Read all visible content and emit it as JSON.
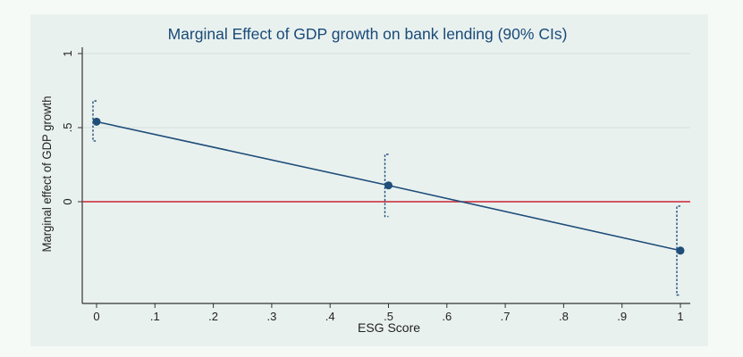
{
  "chart_data": {
    "type": "line",
    "title": "Marginal Effect of GDP growth on bank lending (90% CIs)",
    "xlabel": "ESG Score",
    "ylabel": "Marginal effect of GDP growth",
    "xlim": [
      0,
      1
    ],
    "ylim": [
      -0.67,
      1
    ],
    "x_ticks": [
      {
        "value": 0,
        "label": "0"
      },
      {
        "value": 0.1,
        "label": ".1"
      },
      {
        "value": 0.2,
        "label": ".2"
      },
      {
        "value": 0.3,
        "label": ".3"
      },
      {
        "value": 0.4,
        "label": ".4"
      },
      {
        "value": 0.5,
        "label": ".5"
      },
      {
        "value": 0.6,
        "label": ".6"
      },
      {
        "value": 0.7,
        "label": ".7"
      },
      {
        "value": 0.8,
        "label": ".8"
      },
      {
        "value": 0.9,
        "label": ".9"
      },
      {
        "value": 1,
        "label": "1"
      }
    ],
    "y_ticks": [
      {
        "value": 0,
        "label": "0"
      },
      {
        "value": 0.5,
        "label": ".5"
      },
      {
        "value": 1,
        "label": "1"
      }
    ],
    "reference_line": {
      "y": 0,
      "color": "#cc2233"
    },
    "series": [
      {
        "x": [
          0,
          0.5,
          1
        ],
        "y": [
          0.54,
          0.11,
          -0.33
        ],
        "ci_low": [
          0.41,
          -0.1,
          -0.63
        ],
        "ci_high": [
          0.68,
          0.32,
          -0.03
        ],
        "color": "#1f4e79"
      }
    ],
    "grid": false,
    "colors": {
      "line": "#1f4e79",
      "ci": "#1f4e79",
      "zero_line": "#cc2233",
      "title": "#1a4a78",
      "gridline": "#d5dedb"
    }
  }
}
